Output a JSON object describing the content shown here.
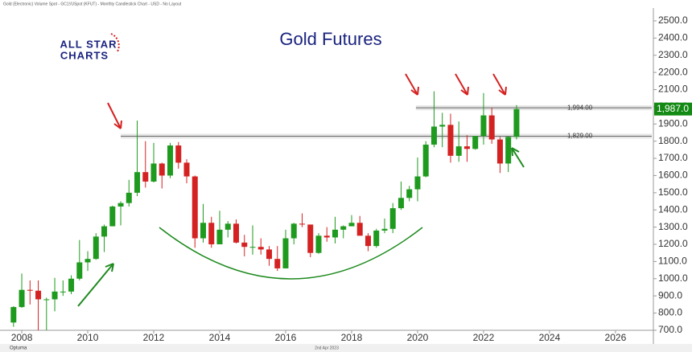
{
  "header": "Gold (Electronic) Volume Spot - GC1!/USpot (KFUT) - Monthly Candlestick Chart - USD - No Layout",
  "logo": {
    "line1": "ALL STAR",
    "line2": "CHARTS"
  },
  "footer": {
    "brand": "Optuma",
    "date": "2nd Apr 2023"
  },
  "chart_data": {
    "type": "candlestick",
    "title": "Gold Futures",
    "x": [
      2007.75,
      2008.0,
      2008.25,
      2008.5,
      2008.75,
      2009.0,
      2009.25,
      2009.5,
      2009.75,
      2010.0,
      2010.25,
      2010.5,
      2010.75,
      2011.0,
      2011.25,
      2011.5,
      2011.75,
      2012.0,
      2012.25,
      2012.5,
      2012.75,
      2013.0,
      2013.25,
      2013.5,
      2013.75,
      2014.0,
      2014.25,
      2014.5,
      2014.75,
      2015.0,
      2015.25,
      2015.5,
      2015.75,
      2016.0,
      2016.25,
      2016.5,
      2016.75,
      2017.0,
      2017.25,
      2017.5,
      2017.75,
      2018.0,
      2018.25,
      2018.5,
      2018.75,
      2019.0,
      2019.25,
      2019.5,
      2019.75,
      2020.0,
      2020.25,
      2020.5,
      2020.75,
      2021.0,
      2021.25,
      2021.5,
      2021.75,
      2022.0,
      2022.25,
      2022.5,
      2022.75,
      2023.0
    ],
    "open": [
      745,
      835,
      935,
      930,
      880,
      880,
      925,
      925,
      1000,
      1095,
      1115,
      1245,
      1305,
      1420,
      1440,
      1500,
      1620,
      1565,
      1670,
      1600,
      1775,
      1675,
      1595,
      1235,
      1325,
      1200,
      1285,
      1320,
      1210,
      1185,
      1185,
      1170,
      1115,
      1060,
      1235,
      1320,
      1315,
      1150,
      1250,
      1240,
      1285,
      1305,
      1325,
      1250,
      1190,
      1280,
      1290,
      1410,
      1470,
      1520,
      1595,
      1780,
      1885,
      1895,
      1715,
      1770,
      1755,
      1830,
      1950,
      1810,
      1670,
      1825
    ],
    "high": [
      840,
      1030,
      990,
      990,
      890,
      1005,
      990,
      1020,
      1225,
      1160,
      1265,
      1315,
      1425,
      1450,
      1575,
      1920,
      1800,
      1790,
      1675,
      1790,
      1795,
      1695,
      1600,
      1435,
      1360,
      1395,
      1335,
      1345,
      1255,
      1310,
      1235,
      1190,
      1190,
      1285,
      1325,
      1380,
      1310,
      1265,
      1300,
      1360,
      1310,
      1370,
      1365,
      1265,
      1290,
      1350,
      1440,
      1565,
      1540,
      1705,
      1800,
      2090,
      1965,
      1960,
      1915,
      1835,
      1830,
      2080,
      1995,
      1825,
      1830,
      2010
    ],
    "low": [
      720,
      830,
      850,
      700,
      700,
      810,
      900,
      910,
      990,
      1045,
      1110,
      1155,
      1305,
      1310,
      1420,
      1480,
      1530,
      1560,
      1525,
      1585,
      1640,
      1555,
      1180,
      1210,
      1180,
      1200,
      1240,
      1205,
      1130,
      1140,
      1140,
      1075,
      1045,
      1060,
      1200,
      1300,
      1125,
      1145,
      1215,
      1205,
      1235,
      1305,
      1250,
      1160,
      1180,
      1265,
      1265,
      1400,
      1450,
      1450,
      1590,
      1765,
      1765,
      1675,
      1680,
      1680,
      1750,
      1780,
      1785,
      1615,
      1620,
      1810
    ],
    "close": [
      835,
      935,
      930,
      880,
      880,
      925,
      925,
      1000,
      1095,
      1115,
      1245,
      1305,
      1420,
      1440,
      1500,
      1620,
      1565,
      1670,
      1600,
      1775,
      1675,
      1595,
      1235,
      1325,
      1200,
      1285,
      1320,
      1210,
      1185,
      1185,
      1170,
      1115,
      1060,
      1235,
      1320,
      1315,
      1150,
      1250,
      1240,
      1285,
      1305,
      1325,
      1250,
      1190,
      1280,
      1290,
      1410,
      1470,
      1520,
      1595,
      1780,
      1885,
      1895,
      1715,
      1770,
      1755,
      1830,
      1950,
      1810,
      1670,
      1825,
      1987
    ],
    "up_color": "#1e9a1e",
    "down_color": "#d42222",
    "xlim": [
      2007.34,
      2027.1
    ],
    "xticks": [
      2008,
      2010,
      2012,
      2014,
      2016,
      2018,
      2020,
      2022,
      2024,
      2026
    ],
    "ylim": [
      667,
      2598
    ],
    "yticks": [
      {
        "value": 700,
        "label": "700.0"
      },
      {
        "value": 800,
        "label": "800.0"
      },
      {
        "value": 900,
        "label": "900.0"
      },
      {
        "value": 1000,
        "label": "1000.0"
      },
      {
        "value": 1100,
        "label": "1100.0"
      },
      {
        "value": 1200,
        "label": "1200.0"
      },
      {
        "value": 1300,
        "label": "1300.0"
      },
      {
        "value": 1400,
        "label": "1400.0"
      },
      {
        "value": 1500,
        "label": "1500.0"
      },
      {
        "value": 1600,
        "label": "1600.0"
      },
      {
        "value": 1700,
        "label": "1700.0"
      },
      {
        "value": 1800,
        "label": "1800.0"
      },
      {
        "value": 1900,
        "label": "1900.0"
      },
      {
        "value": 2000,
        "label": "2000.0"
      },
      {
        "value": 2100,
        "label": "2100.0"
      },
      {
        "value": 2200,
        "label": "2200.0"
      },
      {
        "value": 2300,
        "label": "2300.0"
      },
      {
        "value": 2400,
        "label": "2400.0"
      },
      {
        "value": 2500,
        "label": "2500.0"
      }
    ],
    "levels": [
      {
        "value": 1994,
        "label": "1,994.00",
        "start": 2019.95
      },
      {
        "value": 1829,
        "label": "1,829.00",
        "start": 2011.0
      }
    ],
    "last_price": {
      "value": 1987,
      "label": "1,987.0",
      "color": "#138a13"
    }
  }
}
